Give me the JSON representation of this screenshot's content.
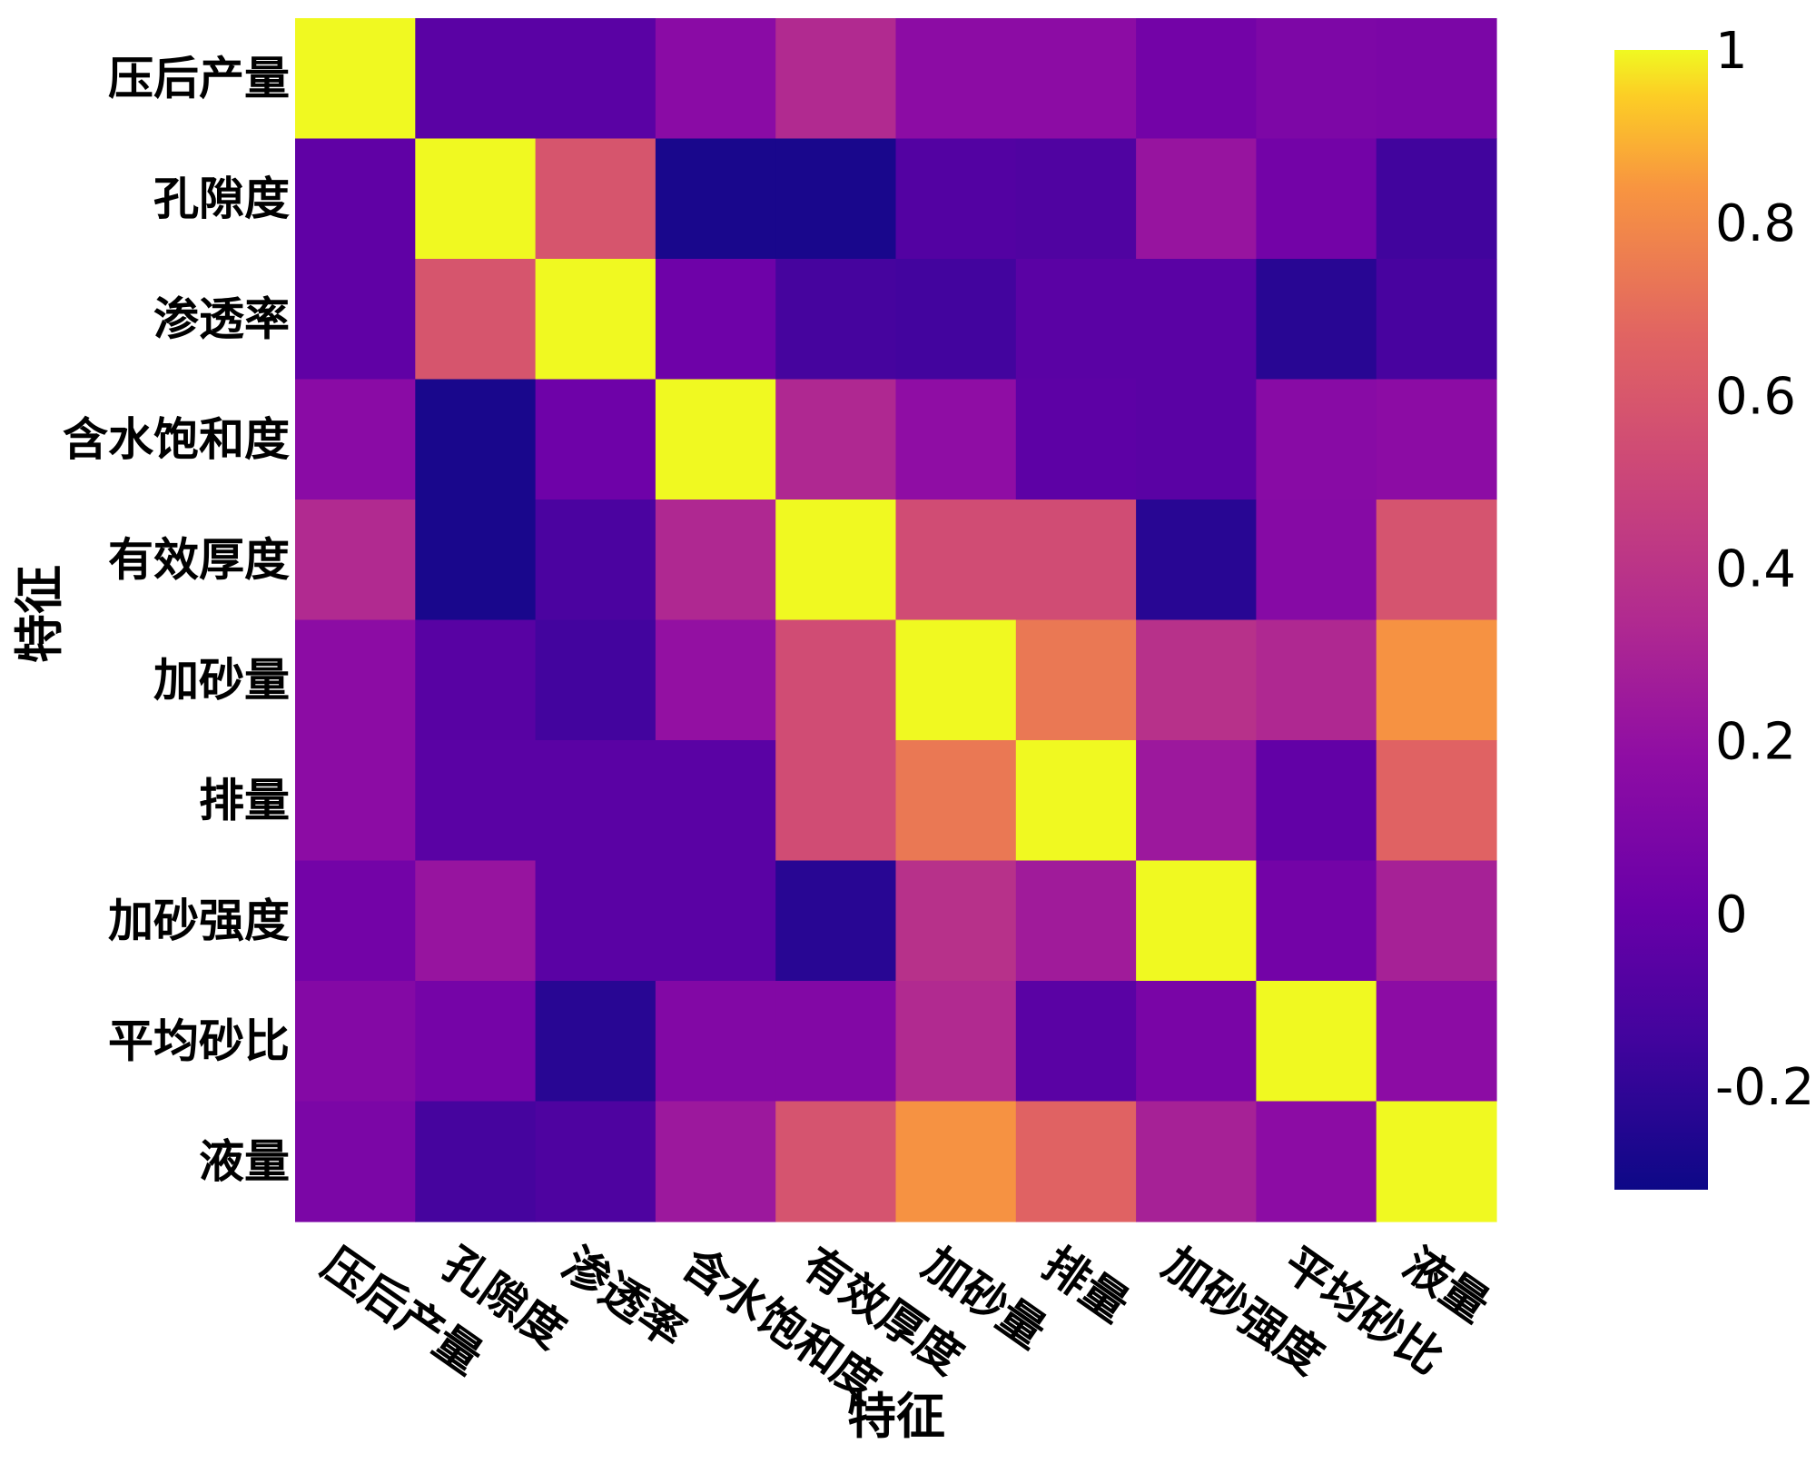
{
  "chart_data": {
    "type": "heatmap",
    "xlabel": "特征",
    "ylabel": "特征",
    "categories": [
      "压后产量",
      "孔隙度",
      "渗透率",
      "含水饱和度",
      "有效厚度",
      "加砂量",
      "排量",
      "加砂强度",
      "平均砂比",
      "液量"
    ],
    "values": [
      [
        1.0,
        -0.05,
        -0.05,
        0.16,
        0.34,
        0.17,
        0.17,
        0.05,
        0.1,
        0.09
      ],
      [
        -0.03,
        1.0,
        0.59,
        -0.28,
        -0.28,
        -0.08,
        -0.09,
        0.22,
        0.05,
        -0.15
      ],
      [
        -0.03,
        0.59,
        1.0,
        0.03,
        -0.13,
        -0.14,
        -0.05,
        -0.05,
        -0.23,
        -0.12
      ],
      [
        0.16,
        -0.28,
        0.03,
        1.0,
        0.33,
        0.18,
        -0.04,
        -0.05,
        0.15,
        0.17
      ],
      [
        0.34,
        -0.28,
        -0.11,
        0.33,
        1.0,
        0.54,
        0.54,
        -0.23,
        0.14,
        0.58
      ],
      [
        0.17,
        -0.06,
        -0.14,
        0.2,
        0.54,
        1.0,
        0.74,
        0.38,
        0.33,
        0.83
      ],
      [
        0.17,
        -0.05,
        -0.05,
        -0.05,
        0.54,
        0.74,
        1.0,
        0.24,
        -0.02,
        0.66
      ],
      [
        0.05,
        0.22,
        -0.05,
        -0.05,
        -0.23,
        0.38,
        0.26,
        1.0,
        0.05,
        0.29
      ],
      [
        0.13,
        0.06,
        -0.23,
        0.12,
        0.12,
        0.34,
        -0.05,
        0.08,
        1.0,
        0.17
      ],
      [
        0.09,
        -0.13,
        -0.1,
        0.24,
        0.58,
        0.83,
        0.66,
        0.29,
        0.17,
        1.0
      ]
    ],
    "colorbar": {
      "range": [
        -0.32,
        1.0
      ],
      "ticks": [
        1,
        0.8,
        0.6,
        0.4,
        0.2,
        0,
        -0.2
      ],
      "tick_labels": [
        "1",
        "0.8",
        "0.6",
        "0.4",
        "0.2",
        "0",
        "-0.2"
      ],
      "colormap": "plasma"
    },
    "grid": false
  }
}
